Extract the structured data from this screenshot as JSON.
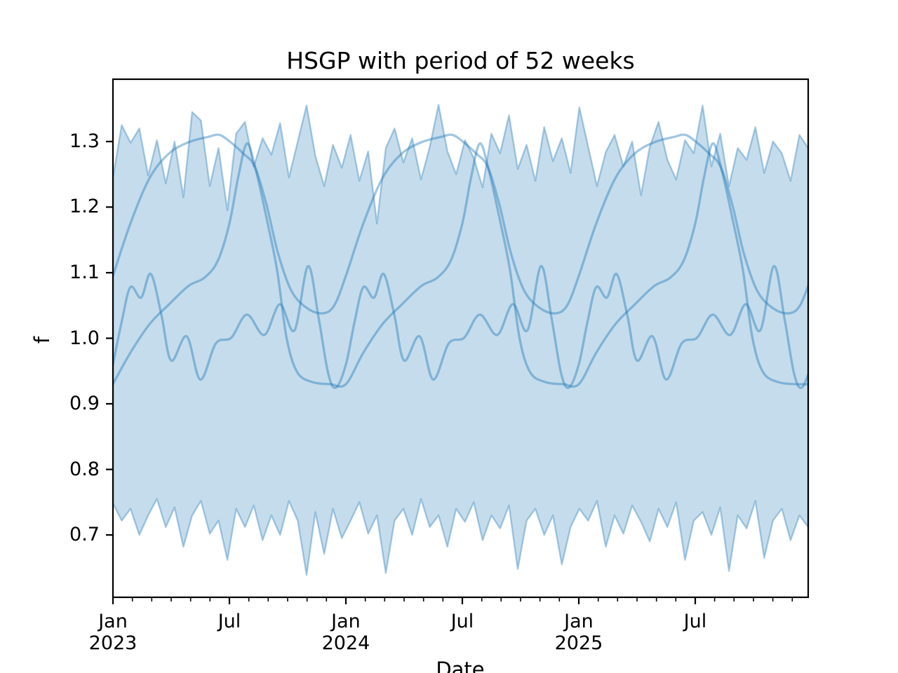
{
  "title": "HSGP with period of 52 weeks",
  "x_axis": {
    "label": "Date",
    "major_ticks": [
      {
        "line1": "Jan",
        "line2": "2023",
        "month": 0
      },
      {
        "line1": "Jul",
        "line2": "",
        "month": 6
      },
      {
        "line1": "Jan",
        "line2": "2024",
        "month": 12
      },
      {
        "line1": "Jul",
        "line2": "",
        "month": 18
      },
      {
        "line1": "Jan",
        "line2": "2025",
        "month": 24
      },
      {
        "line1": "Jul",
        "line2": "",
        "month": 30
      }
    ]
  },
  "y_axis": {
    "label": "f",
    "ticks": [
      "1.3",
      "1.2",
      "1.1",
      "1.0",
      "0.9",
      "0.8",
      "0.7"
    ],
    "tick_values": [
      1.3,
      1.2,
      1.1,
      1.0,
      0.9,
      0.8,
      0.7
    ]
  },
  "chart_data": {
    "type": "line",
    "title": "HSGP with period of 52 weeks",
    "xlabel": "Date",
    "ylabel": "f",
    "period_weeks": 52,
    "x_start": "2023-01-01",
    "x_end": "2025-12-21",
    "xlim_months": [
      0,
      35.82
    ],
    "ylim": [
      0.605,
      1.395
    ],
    "grid": false,
    "legend": null,
    "colors": {
      "line": "#1f77b4",
      "line_opacity": 0.42,
      "band_fill": "#1f77b4",
      "band_fill_opacity": 0.26,
      "band_edge_opacity": 0.36
    },
    "series": [
      {
        "name": "posterior-sample-smooth",
        "period_months": 12,
        "repeats": 3,
        "keyframes": [
          [
            0,
            1.095
          ],
          [
            0.9,
            1.175
          ],
          [
            1.9,
            1.245
          ],
          [
            2.9,
            1.282
          ],
          [
            3.9,
            1.299
          ],
          [
            4.9,
            1.307
          ],
          [
            5.5,
            1.31
          ],
          [
            6.1,
            1.298
          ],
          [
            6.7,
            1.282
          ],
          [
            7.3,
            1.262
          ],
          [
            7.9,
            1.205
          ],
          [
            8.5,
            1.13
          ],
          [
            9.2,
            1.072
          ],
          [
            10.0,
            1.046
          ],
          [
            10.8,
            1.038
          ],
          [
            11.4,
            1.05
          ],
          [
            12,
            1.095
          ]
        ]
      },
      {
        "name": "posterior-sample-steep",
        "period_months": 12,
        "repeats": 3,
        "keyframes": [
          [
            0,
            0.93
          ],
          [
            0.9,
            0.978
          ],
          [
            1.9,
            1.022
          ],
          [
            2.9,
            1.052
          ],
          [
            3.9,
            1.08
          ],
          [
            4.7,
            1.092
          ],
          [
            5.4,
            1.118
          ],
          [
            6.0,
            1.175
          ],
          [
            6.45,
            1.245
          ],
          [
            6.9,
            1.297
          ],
          [
            7.35,
            1.258
          ],
          [
            7.9,
            1.185
          ],
          [
            8.45,
            1.105
          ],
          [
            8.95,
            1.0
          ],
          [
            9.5,
            0.948
          ],
          [
            10.3,
            0.933
          ],
          [
            11.2,
            0.93
          ],
          [
            12,
            0.93
          ]
        ]
      },
      {
        "name": "posterior-sample-wiggly",
        "period_months": 12,
        "repeats": 3,
        "keyframes": [
          [
            0,
            0.96
          ],
          [
            0.45,
            1.025
          ],
          [
            0.9,
            1.078
          ],
          [
            1.45,
            1.062
          ],
          [
            1.95,
            1.098
          ],
          [
            2.5,
            1.035
          ],
          [
            3.0,
            0.966
          ],
          [
            3.8,
            1.003
          ],
          [
            4.5,
            0.937
          ],
          [
            5.3,
            0.992
          ],
          [
            6.1,
            1.001
          ],
          [
            6.9,
            1.036
          ],
          [
            7.8,
            1.005
          ],
          [
            8.6,
            1.052
          ],
          [
            9.35,
            1.012
          ],
          [
            10.05,
            1.11
          ],
          [
            10.6,
            1.03
          ],
          [
            11.1,
            0.945
          ],
          [
            11.5,
            0.925
          ],
          [
            12,
            0.96
          ]
        ]
      }
    ],
    "hdi_band": {
      "name": "hdi-envelope",
      "upper": [
        1.245,
        1.325,
        1.298,
        1.32,
        1.248,
        1.302,
        1.236,
        1.3,
        1.215,
        1.345,
        1.332,
        1.232,
        1.29,
        1.195,
        1.312,
        1.33,
        1.262,
        1.305,
        1.28,
        1.328,
        1.245,
        1.3,
        1.355,
        1.278,
        1.232,
        1.295,
        1.26,
        1.31,
        1.24,
        1.285,
        1.175,
        1.29,
        1.32,
        1.268,
        1.305,
        1.242,
        1.292,
        1.356,
        1.285,
        1.25,
        1.302,
        1.275,
        1.23,
        1.312,
        1.282,
        1.34,
        1.258,
        1.295,
        1.24,
        1.322,
        1.27,
        1.305,
        1.252,
        1.352,
        1.292,
        1.232,
        1.284,
        1.31,
        1.262,
        1.3,
        1.218,
        1.292,
        1.33,
        1.272,
        1.242,
        1.302,
        1.282,
        1.355,
        1.262,
        1.312,
        1.232,
        1.29,
        1.272,
        1.322,
        1.252,
        1.3,
        1.282,
        1.24,
        1.31,
        1.29
      ],
      "lower": [
        0.748,
        0.722,
        0.74,
        0.7,
        0.73,
        0.755,
        0.712,
        0.742,
        0.682,
        0.73,
        0.752,
        0.702,
        0.722,
        0.662,
        0.74,
        0.712,
        0.745,
        0.692,
        0.73,
        0.7,
        0.752,
        0.722,
        0.639,
        0.735,
        0.671,
        0.74,
        0.695,
        0.722,
        0.75,
        0.702,
        0.73,
        0.642,
        0.722,
        0.74,
        0.7,
        0.755,
        0.712,
        0.73,
        0.682,
        0.74,
        0.72,
        0.75,
        0.692,
        0.73,
        0.71,
        0.745,
        0.648,
        0.722,
        0.74,
        0.7,
        0.73,
        0.655,
        0.712,
        0.74,
        0.722,
        0.752,
        0.682,
        0.73,
        0.702,
        0.745,
        0.72,
        0.69,
        0.74,
        0.712,
        0.75,
        0.662,
        0.722,
        0.735,
        0.7,
        0.742,
        0.645,
        0.73,
        0.71,
        0.752,
        0.665,
        0.722,
        0.74,
        0.692,
        0.73,
        0.712
      ]
    }
  }
}
